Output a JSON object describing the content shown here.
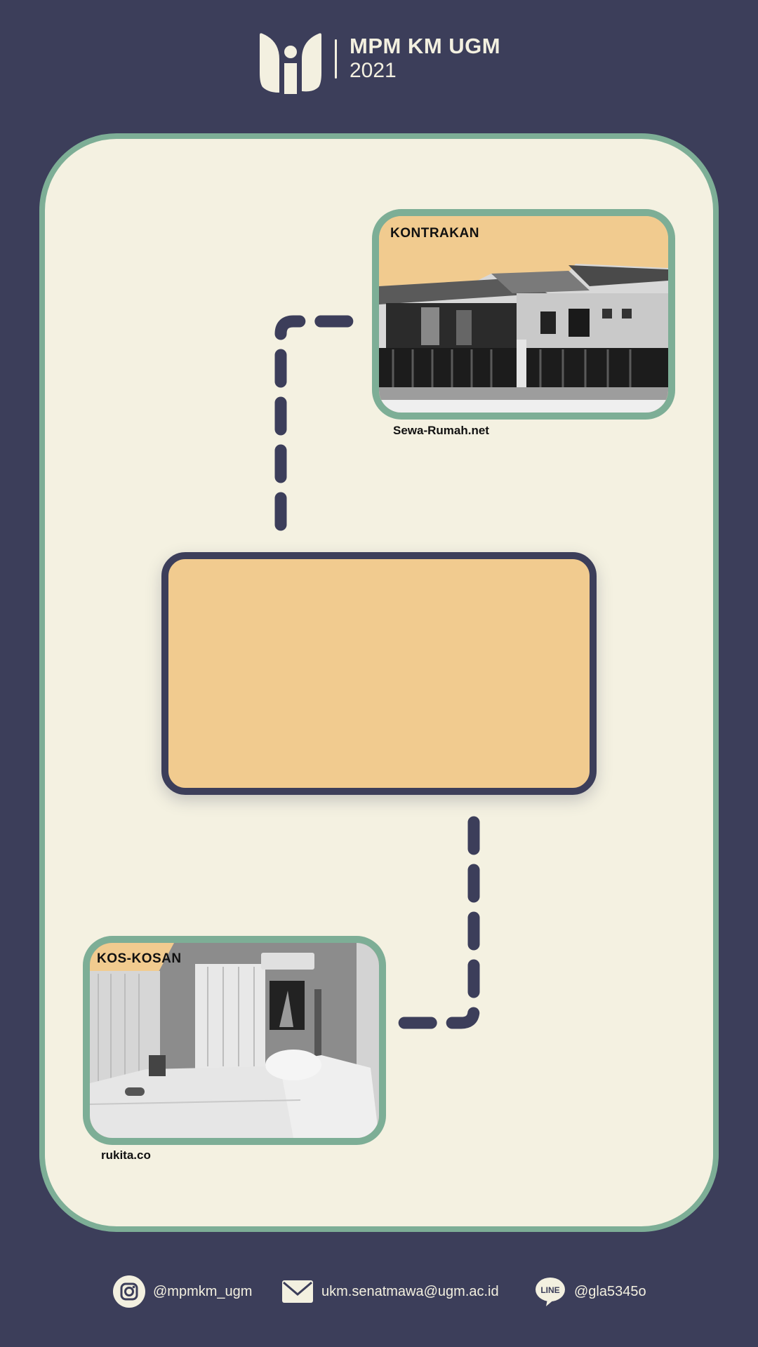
{
  "header": {
    "org_name": "MPM KM UGM",
    "year": "2021"
  },
  "cards": {
    "kontrakan": {
      "label": "KONTRAKAN",
      "source": "Sewa-Rumah.net"
    },
    "kos": {
      "label": "KOS-KOSAN",
      "source": "rukita.co"
    }
  },
  "footer": {
    "instagram": "@mpmkm_ugm",
    "email": "ukm.senatmawa@ugm.ac.id",
    "line_icon_text": "LINE",
    "line": "@gla5345o"
  },
  "colors": {
    "background": "#3c3e5a",
    "card": "#f4f1e1",
    "accent_green": "#7dae96",
    "accent_orange": "#f1cb8f"
  }
}
